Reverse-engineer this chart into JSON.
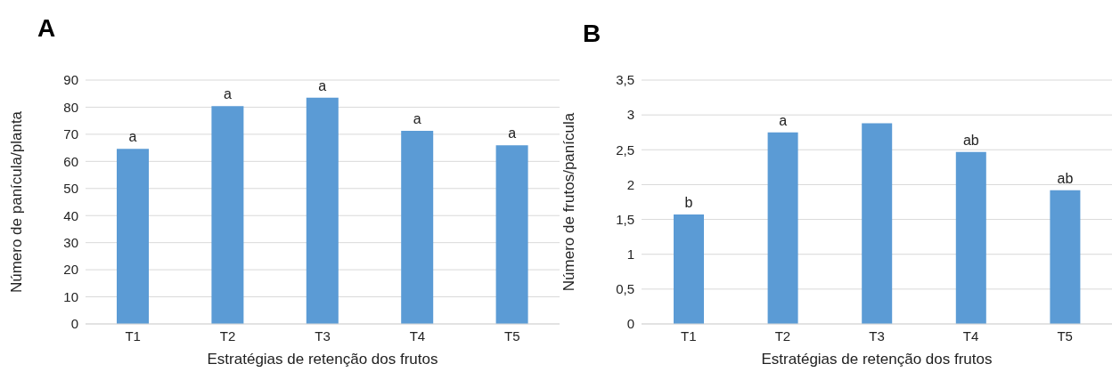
{
  "chart_data": [
    {
      "type": "bar",
      "title": "A",
      "xlabel": "Estratégias de retenção dos frutos",
      "ylabel": "Número de panícula/planta",
      "categories": [
        "T1",
        "T2",
        "T3",
        "T4",
        "T5"
      ],
      "values": [
        64.6,
        80.4,
        83.5,
        71.3,
        65.9
      ],
      "color": "#5b9bd5",
      "ylim": [
        0,
        90
      ],
      "yticks": [
        0,
        10,
        20,
        30,
        40,
        50,
        60,
        70,
        80,
        90
      ],
      "grid": "y",
      "annotations": [
        {
          "text": "a",
          "x": "T1",
          "y": 64.6
        },
        {
          "text": "a",
          "x": "T2",
          "y": 80.4
        },
        {
          "text": "a",
          "x": "T3",
          "y": 83.5
        },
        {
          "text": "a",
          "x": "T4",
          "y": 71.3
        },
        {
          "text": "a",
          "x": "T5",
          "y": 65.9
        }
      ]
    },
    {
      "type": "bar",
      "title": "B",
      "xlabel": "Estratégias de retenção dos frutos",
      "ylabel": "Número de frutos/panícula",
      "categories": [
        "T1",
        "T2",
        "T3",
        "T4",
        "T5"
      ],
      "values": [
        1.57,
        2.75,
        2.88,
        2.47,
        1.92
      ],
      "color": "#5b9bd5",
      "ylim": [
        0,
        3.5
      ],
      "yticks": [
        0,
        {
          "value": 0.5,
          "label": "0,5"
        },
        1,
        {
          "value": 1.5,
          "label": "1,5"
        },
        2,
        {
          "value": 2.5,
          "label": "2,5"
        },
        3,
        {
          "value": 3.5,
          "label": "3,5"
        }
      ],
      "grid": "y",
      "annotations": [
        {
          "text": "b",
          "x": "T1",
          "y": 1.57
        },
        {
          "text": "a",
          "x": "T2",
          "y": 2.75
        },
        {
          "text": "ab",
          "x": "T4",
          "y": 2.47
        },
        {
          "text": "ab",
          "x": "T5",
          "y": 1.92
        }
      ]
    }
  ]
}
